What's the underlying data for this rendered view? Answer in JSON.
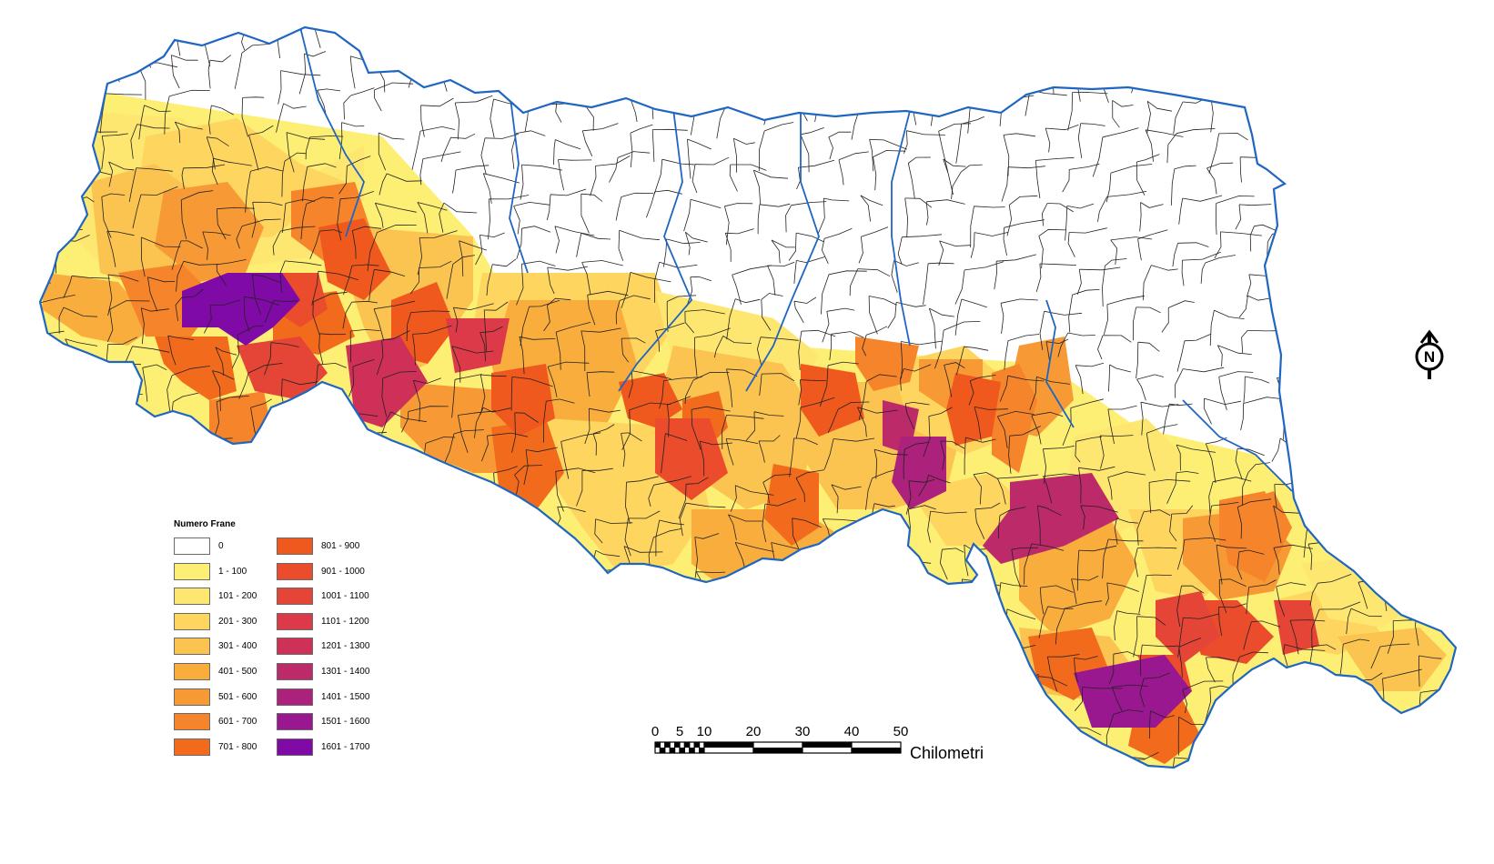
{
  "legend": {
    "title": "Numero Frane",
    "classes": [
      {
        "label": "0",
        "color": "#ffffff"
      },
      {
        "label": "1 - 100",
        "color": "#fdee74"
      },
      {
        "label": "101 - 200",
        "color": "#fde770"
      },
      {
        "label": "201 - 300",
        "color": "#fdd55f"
      },
      {
        "label": "301 - 400",
        "color": "#fbc350"
      },
      {
        "label": "401 - 500",
        "color": "#f9ad3d"
      },
      {
        "label": "501 - 600",
        "color": "#f79a35"
      },
      {
        "label": "601 - 700",
        "color": "#f5842a"
      },
      {
        "label": "701 - 800",
        "color": "#f26a1c"
      },
      {
        "label": "801 - 900",
        "color": "#f0591e"
      },
      {
        "label": "901 - 1000",
        "color": "#ea4c2c"
      },
      {
        "label": "1001 - 1100",
        "color": "#e44536"
      },
      {
        "label": "1101 - 1200",
        "color": "#dc3a48"
      },
      {
        "label": "1201 - 1300",
        "color": "#ce3058"
      },
      {
        "label": "1301 - 1400",
        "color": "#bd2a69"
      },
      {
        "label": "1401 - 1500",
        "color": "#ac217b"
      },
      {
        "label": "1501 - 1600",
        "color": "#991890"
      },
      {
        "label": "1601 - 1700",
        "color": "#7f0aa5"
      }
    ]
  },
  "scale_bar": {
    "ticks": [
      "0",
      "5",
      "10",
      "20",
      "30",
      "40",
      "50"
    ],
    "unit": "Chilometri"
  },
  "north_arrow": {
    "label": "N"
  },
  "colors": {
    "boundary": "#1f66c2",
    "municipal_line": "#222222"
  }
}
